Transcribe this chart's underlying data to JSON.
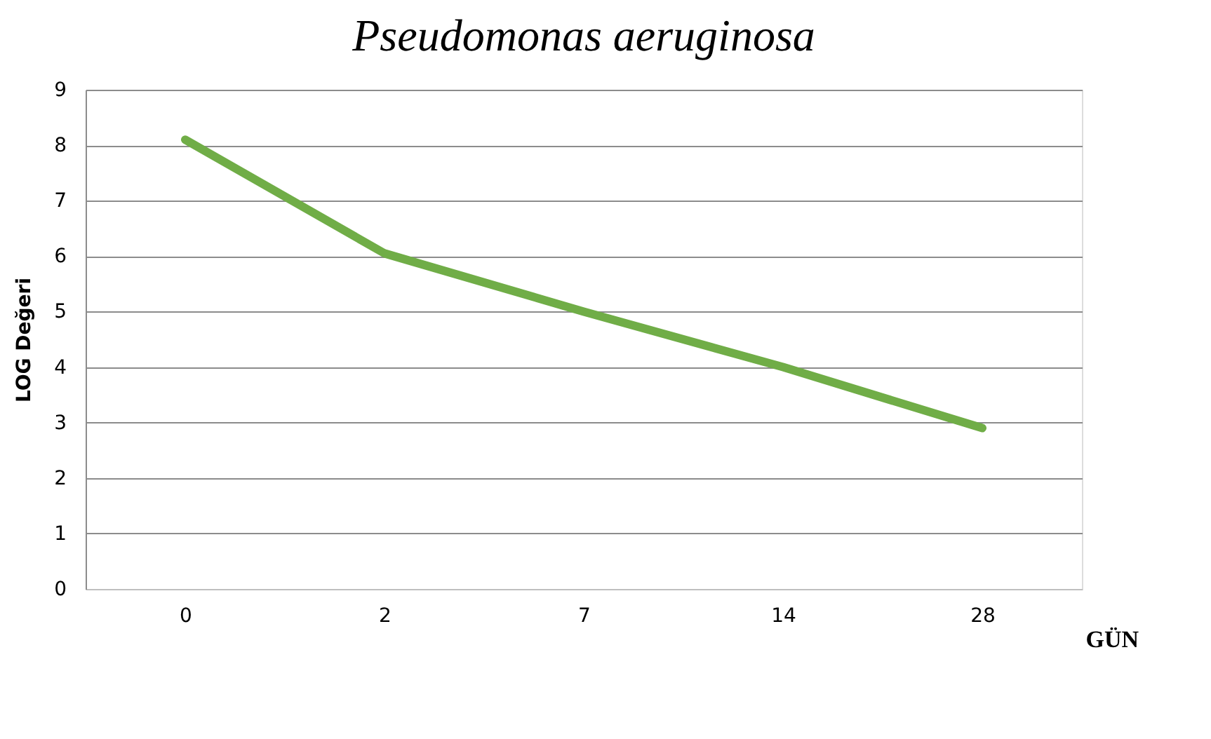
{
  "chart_data": {
    "type": "line",
    "title": "Pseudomonas aeruginosa",
    "xlabel": "GÜN",
    "ylabel": "LOG Değeri",
    "categories": [
      "0",
      "2",
      "7",
      "14",
      "28"
    ],
    "series": [
      {
        "color": "#70ad47",
        "values": [
          8.1,
          6.05,
          5.0,
          4.0,
          2.9
        ]
      }
    ],
    "ylim": [
      0,
      9
    ],
    "yticks": [
      0,
      1,
      2,
      3,
      4,
      5,
      6,
      7,
      8,
      9
    ],
    "grid": "y",
    "marker": "none",
    "line_style": "solid"
  }
}
